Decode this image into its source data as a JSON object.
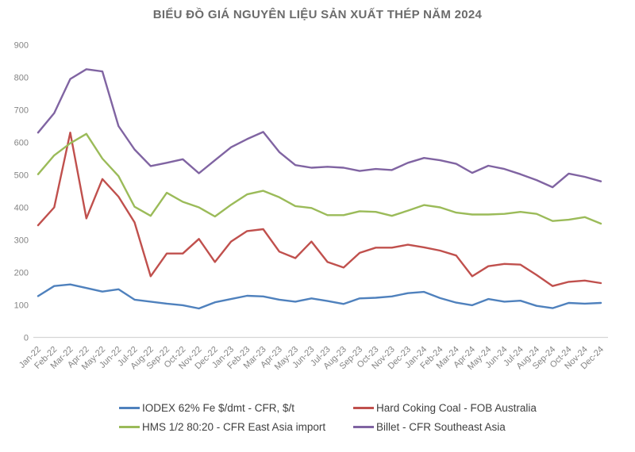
{
  "chart": {
    "title": "BIỂU ĐỒ GIÁ NGUYÊN LIỆU SẢN XUẤT THÉP NĂM 2024",
    "title_color": "#6b6b6b",
    "axis_label_color": "#848484",
    "axis_line_color": "#d6d6d6",
    "legend_text_color": "#3f3f3f"
  },
  "chart_data": {
    "type": "line",
    "title": "BIỂU ĐỒ GIÁ NGUYÊN LIỆU SẢN XUẤT THÉP NĂM 2024",
    "xlabel": "",
    "ylabel": "",
    "ylim": [
      0,
      900
    ],
    "yticks": [
      0,
      100,
      200,
      300,
      400,
      500,
      600,
      700,
      800,
      900
    ],
    "grid": false,
    "legend_position": "bottom",
    "categories": [
      "Jan-22",
      "Feb-22",
      "Mar-22",
      "Apr-22",
      "May-22",
      "Jun-22",
      "Jul-22",
      "Aug-22",
      "Sep-22",
      "Oct-22",
      "Nov-22",
      "Dec-22",
      "Jan-23",
      "Feb-23",
      "Mar-23",
      "Apr-23",
      "May-23",
      "Jun-23",
      "Jul-23",
      "Aug-23",
      "Sep-23",
      "Oct-23",
      "Nov-23",
      "Dec-23",
      "Jan-24",
      "Feb-24",
      "Mar-24",
      "Apr-24",
      "May-24",
      "Jun-24",
      "Jul-24",
      "Aug-24",
      "Sep-24",
      "Oct-24",
      "Nov-24",
      "Dec-24"
    ],
    "series": [
      {
        "name": "IODEX 62% Fe $/dmt - CFR, $/t",
        "color": "#4f81bd",
        "values": [
          127,
          158,
          163,
          152,
          141,
          148,
          116,
          110,
          104,
          99,
          89,
          108,
          118,
          128,
          126,
          116,
          110,
          120,
          112,
          103,
          120,
          122,
          126,
          136,
          140,
          121,
          107,
          99,
          118,
          110,
          113,
          97,
          90,
          106,
          104,
          106
        ]
      },
      {
        "name": "Hard Coking Coal - FOB Australia",
        "color": "#c0504d",
        "values": [
          345,
          400,
          630,
          366,
          487,
          433,
          354,
          188,
          258,
          258,
          303,
          232,
          295,
          327,
          333,
          264,
          244,
          295,
          232,
          215,
          260,
          276,
          276,
          285,
          277,
          267,
          252,
          188,
          219,
          226,
          224,
          192,
          158,
          171,
          175,
          167
        ]
      },
      {
        "name": "HMS 1/2 80:20 - CFR East Asia import",
        "color": "#9bbb59",
        "values": [
          502,
          560,
          597,
          626,
          550,
          496,
          402,
          374,
          445,
          417,
          400,
          372,
          408,
          440,
          451,
          431,
          404,
          398,
          376,
          376,
          388,
          386,
          374,
          390,
          407,
          400,
          384,
          378,
          378,
          380,
          386,
          380,
          358,
          362,
          370,
          350
        ]
      },
      {
        "name": "Billet - CFR Southeast Asia",
        "color": "#8064a2",
        "values": [
          630,
          690,
          795,
          825,
          818,
          650,
          578,
          527,
          537,
          548,
          505,
          545,
          585,
          610,
          632,
          570,
          530,
          522,
          525,
          522,
          512,
          518,
          515,
          537,
          552,
          545,
          534,
          506,
          528,
          518,
          502,
          484,
          462,
          504,
          494,
          480
        ]
      }
    ]
  }
}
